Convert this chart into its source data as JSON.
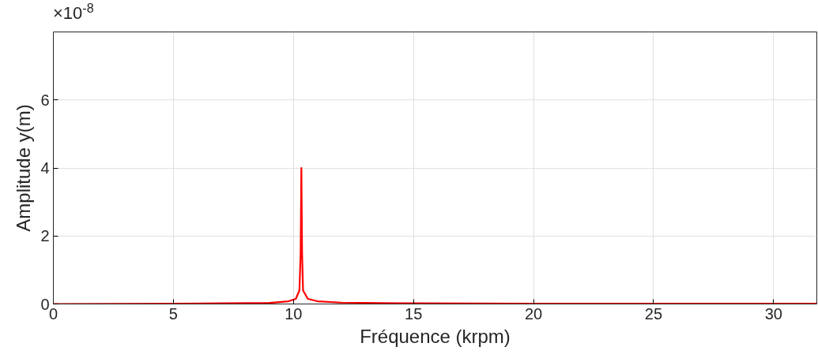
{
  "chart_data": {
    "type": "line",
    "xlabel": "Fréquence (krpm)",
    "ylabel": "Amplitude y(m)",
    "annotations": [
      "×10$^{-8}$"
    ],
    "x": [
      0,
      5,
      9,
      9.8,
      10.1,
      10.25,
      10.3,
      10.33,
      10.36,
      10.4,
      10.6,
      11,
      12,
      15,
      20,
      31.8
    ],
    "series": [
      {
        "color": "#ff0000",
        "values": [
          0,
          0.01,
          0.03,
          0.08,
          0.15,
          0.4,
          1.5,
          4.0,
          1.5,
          0.4,
          0.15,
          0.08,
          0.04,
          0.02,
          0.01,
          0.01
        ]
      }
    ],
    "xlim": [
      0,
      31.8
    ],
    "xticks": [
      0,
      5,
      10,
      15,
      20,
      25,
      30
    ],
    "ylim": [
      0,
      8
    ],
    "yticks": [
      0,
      2,
      4,
      6
    ],
    "grid": true,
    "line_style": "solid"
  }
}
